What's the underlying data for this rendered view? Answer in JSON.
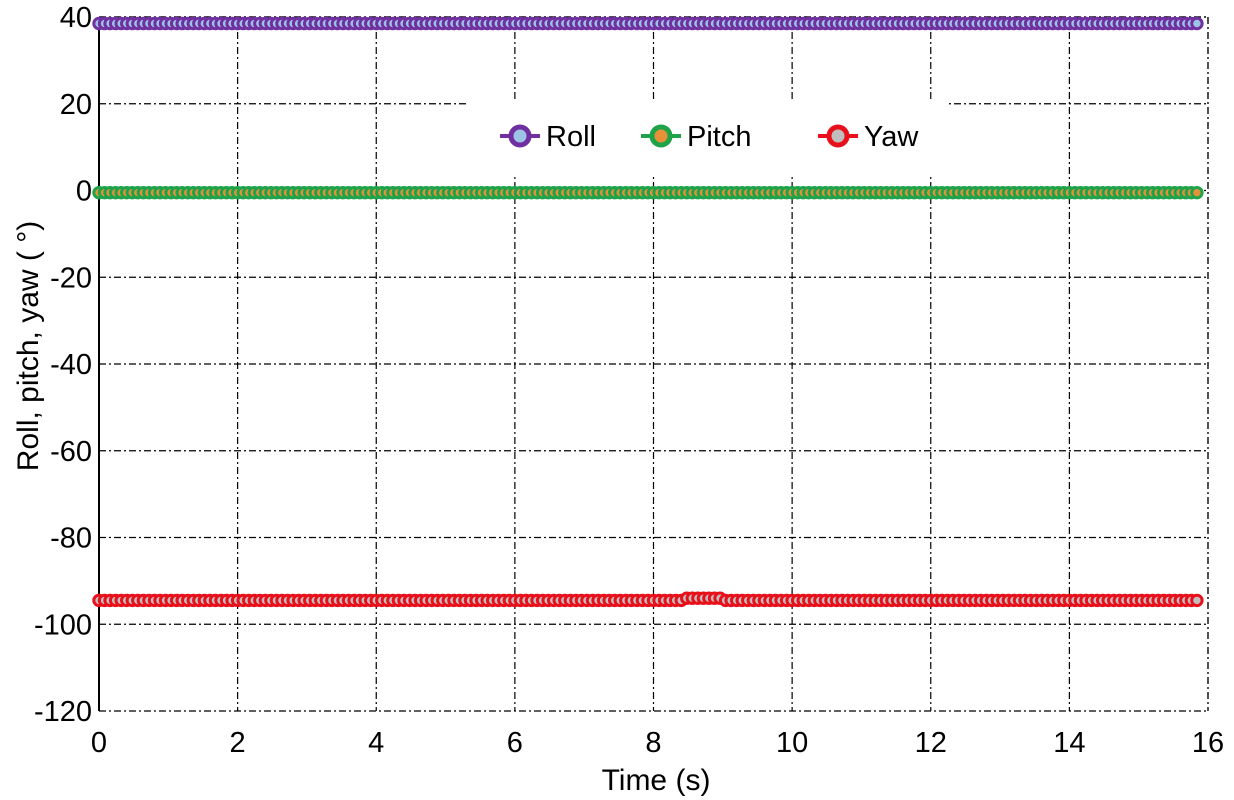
{
  "chart_data": {
    "type": "line",
    "title": "",
    "xlabel": "Time (s)",
    "ylabel": "Roll, pitch, yaw ( °)",
    "xlim": [
      0,
      16
    ],
    "ylim": [
      -120,
      40
    ],
    "x_ticks": [
      0,
      2,
      4,
      6,
      8,
      10,
      12,
      14,
      16
    ],
    "y_ticks": [
      40,
      20,
      0,
      -20,
      -40,
      -60,
      -80,
      -100,
      -120
    ],
    "grid": true,
    "grid_style": "dash-dot",
    "legend_position": "top-center",
    "x": {
      "start": 0,
      "end": 15.85,
      "step": 0.08
    },
    "series": [
      {
        "name": "Roll",
        "color": "#7030A0",
        "marker_fill": "#9DC3E6",
        "marker": "circle",
        "values": [
          {
            "from": 0,
            "to": 15.85,
            "y": 38.5
          }
        ]
      },
      {
        "name": "Pitch",
        "color": "#1FA34A",
        "marker_fill": "#E69138",
        "marker": "circle",
        "values": [
          {
            "from": 0,
            "to": 15.85,
            "y": -0.5
          }
        ]
      },
      {
        "name": "Yaw",
        "color": "#E8101A",
        "marker_fill": "#BFBFBF",
        "marker": "circle",
        "values": [
          {
            "from": 0,
            "to": 8.4,
            "y": -94.5
          },
          {
            "from": 8.4,
            "to": 9.0,
            "y": -94.0
          },
          {
            "from": 9.0,
            "to": 15.85,
            "y": -94.5
          }
        ]
      }
    ]
  }
}
